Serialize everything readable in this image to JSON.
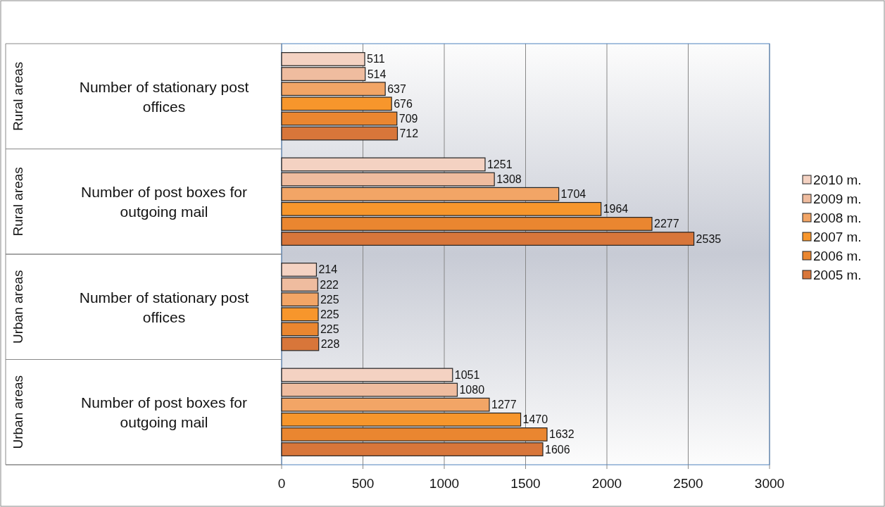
{
  "chart_data": {
    "type": "bar",
    "orientation": "horizontal",
    "categories": [
      "Number of stationary post offices",
      "Number of  post boxes for outgoing mail",
      "Number of stationary post offices",
      "Number of  post boxes for outgoing mail"
    ],
    "annotations": [
      "Rural areas",
      "Rural areas",
      "Urban areas",
      "Urban areas"
    ],
    "series": [
      {
        "name": "2010 m.",
        "color": "#f4d2c2",
        "values": [
          511,
          1251,
          214,
          1051
        ]
      },
      {
        "name": "2009 m.",
        "color": "#efbc9f",
        "values": [
          514,
          1308,
          222,
          1080
        ]
      },
      {
        "name": "2008 m.",
        "color": "#f2a566",
        "values": [
          637,
          1704,
          225,
          1277
        ]
      },
      {
        "name": "2007 m.",
        "color": "#f7962c",
        "values": [
          676,
          1964,
          225,
          1470
        ]
      },
      {
        "name": "2006 m.",
        "color": "#ea8630",
        "values": [
          709,
          2277,
          225,
          1632
        ]
      },
      {
        "name": "2005 m.",
        "color": "#d8763a",
        "values": [
          712,
          2535,
          228,
          1606
        ]
      }
    ],
    "xlim": [
      0,
      3000
    ],
    "xticks": [
      0,
      500,
      1000,
      1500,
      2000,
      2500,
      3000
    ],
    "grid": "x",
    "legend": "right",
    "data_labels": true
  }
}
